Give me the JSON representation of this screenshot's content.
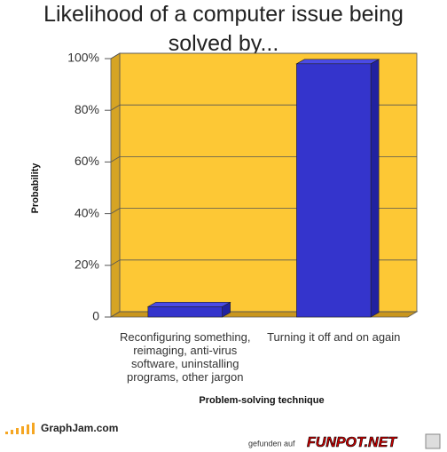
{
  "chart_data": {
    "type": "bar3d",
    "title": "Likelihood of a computer issue being solved by...",
    "x_label": "Problem-solving technique",
    "y_label": "Probability",
    "categories": [
      "Reconfiguring something, reimaging, anti-virus software, uninstalling programs, other jargon",
      "Turning it off and on again"
    ],
    "values": [
      4,
      98
    ],
    "color": "#3434cc",
    "ylim": [
      0,
      100
    ],
    "yticks": [
      0,
      {
        "value": 20,
        "label": "20%"
      },
      {
        "value": 40,
        "label": "40%"
      },
      {
        "value": 60,
        "label": "60%"
      },
      {
        "value": 80,
        "label": "80%"
      },
      {
        "value": 100,
        "label": "100%"
      }
    ],
    "grid": true
  },
  "watermark": {
    "left": "GraphJam.com",
    "right_prefix": "gefunden auf",
    "right": "FUNPOT.NET"
  }
}
